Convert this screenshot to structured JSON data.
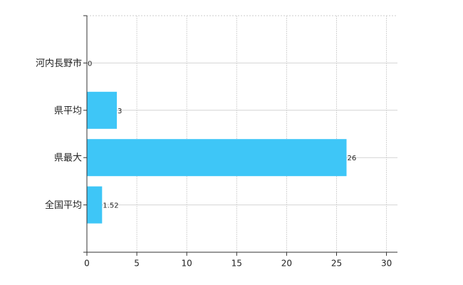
{
  "chart_data": {
    "type": "barh",
    "categories": [
      "河内長野市",
      "県平均",
      "県最大",
      "全国平均"
    ],
    "values": [
      0,
      3,
      26,
      1.52
    ],
    "color": "#3ec6f7",
    "xlim": [
      0,
      31.1
    ],
    "xticks": [
      0,
      5,
      10,
      15,
      20,
      25,
      30
    ],
    "grid": true
  }
}
